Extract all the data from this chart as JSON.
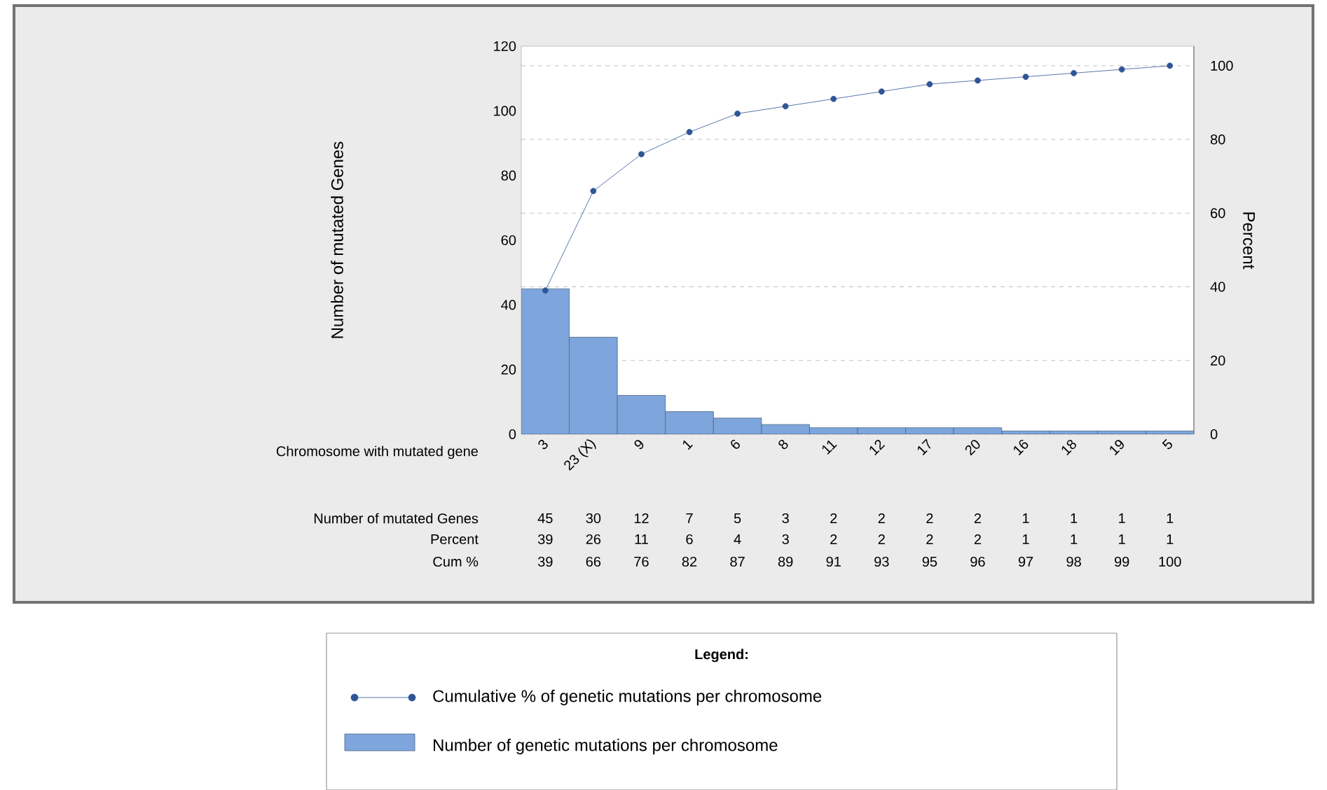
{
  "chart_data": {
    "type": "bar",
    "xlabel": "Chromosome with mutated gene",
    "ylabel": "Number of mutated Genes",
    "y2label": "Percent",
    "legend_title": "Legend:",
    "categories": [
      "3",
      "23 (X)",
      "9",
      "1",
      "6",
      "8",
      "11",
      "12",
      "17",
      "20",
      "16",
      "18",
      "19",
      "5"
    ],
    "series": [
      {
        "name": "Number of genetic mutations per chromosome",
        "color": "#7ea6dc",
        "values": [
          45,
          30,
          12,
          7,
          5,
          3,
          2,
          2,
          2,
          2,
          1,
          1,
          1,
          1
        ]
      },
      {
        "name": "Cumulative % of genetic mutations per chromosome",
        "type": "line",
        "axis": "y2",
        "color": "#2e5597",
        "values": [
          39,
          66,
          76,
          82,
          87,
          89,
          91,
          93,
          95,
          96,
          97,
          98,
          99,
          100
        ]
      }
    ],
    "ylim": [
      0,
      120
    ],
    "yticks": [
      0,
      20,
      40,
      60,
      80,
      100,
      120
    ],
    "y2lim": [
      0,
      105.3
    ],
    "y2ticks": [
      0,
      20,
      40,
      60,
      80,
      100
    ],
    "grid": "y",
    "legend": "bottom",
    "marker": "circle",
    "data_labels": true,
    "annotations": [
      "Cum %",
      "39",
      "26",
      "11",
      "6",
      "4",
      "3",
      "2",
      "2",
      "2",
      "2",
      "1",
      "1",
      "1",
      "1"
    ]
  }
}
